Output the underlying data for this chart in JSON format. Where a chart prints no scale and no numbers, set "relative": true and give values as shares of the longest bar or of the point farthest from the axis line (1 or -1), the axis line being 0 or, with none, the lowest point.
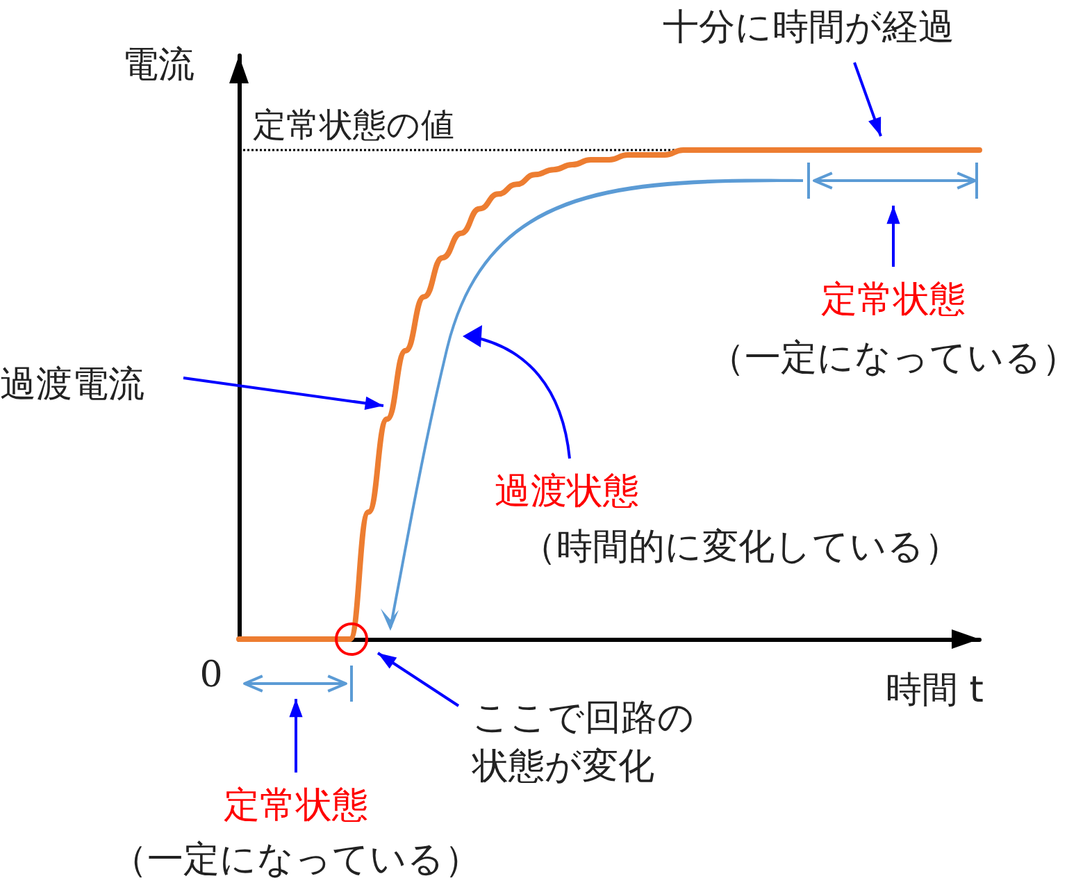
{
  "chart_data": {
    "type": "line",
    "relative": true,
    "title": null,
    "ylabel": "電流",
    "xlabel": "時間 t",
    "marker": "none",
    "categories": [
      null,
      null,
      null,
      null,
      null,
      null,
      null,
      null,
      null,
      null,
      null,
      null,
      null,
      null,
      null,
      null,
      null,
      null,
      null,
      null,
      null,
      null,
      null,
      null,
      null,
      null,
      null,
      null,
      null,
      null,
      null,
      null,
      null,
      null,
      null,
      null,
      null,
      null,
      null,
      null,
      null
    ],
    "series": [
      {
        "name": "過渡電流",
        "color": "#ed7d31",
        "values": [
          0,
          0,
          0,
          0,
          0,
          0,
          0,
          0.26,
          0.45,
          0.59,
          0.7,
          0.78,
          0.83,
          0.88,
          0.91,
          0.93,
          0.95,
          0.96,
          0.97,
          0.98,
          0.98,
          0.99,
          0.99,
          0.99,
          1,
          1,
          1,
          1,
          1,
          1,
          1,
          1,
          1,
          1,
          1,
          1,
          1,
          1,
          1,
          1,
          1
        ]
      }
    ],
    "ref_lines": [
      {
        "axis": "y",
        "value": 1,
        "label": "定常状態の値",
        "color": "#000000",
        "line_style": "dotted"
      }
    ],
    "annotations": [
      "十分に時間が経過",
      "定常状態",
      "（一定になっている）",
      "過渡状態",
      "（時間的に変化している）",
      "ここで回路の状態が変化",
      "定常状態",
      "（一定になっている）",
      "0"
    ]
  }
}
